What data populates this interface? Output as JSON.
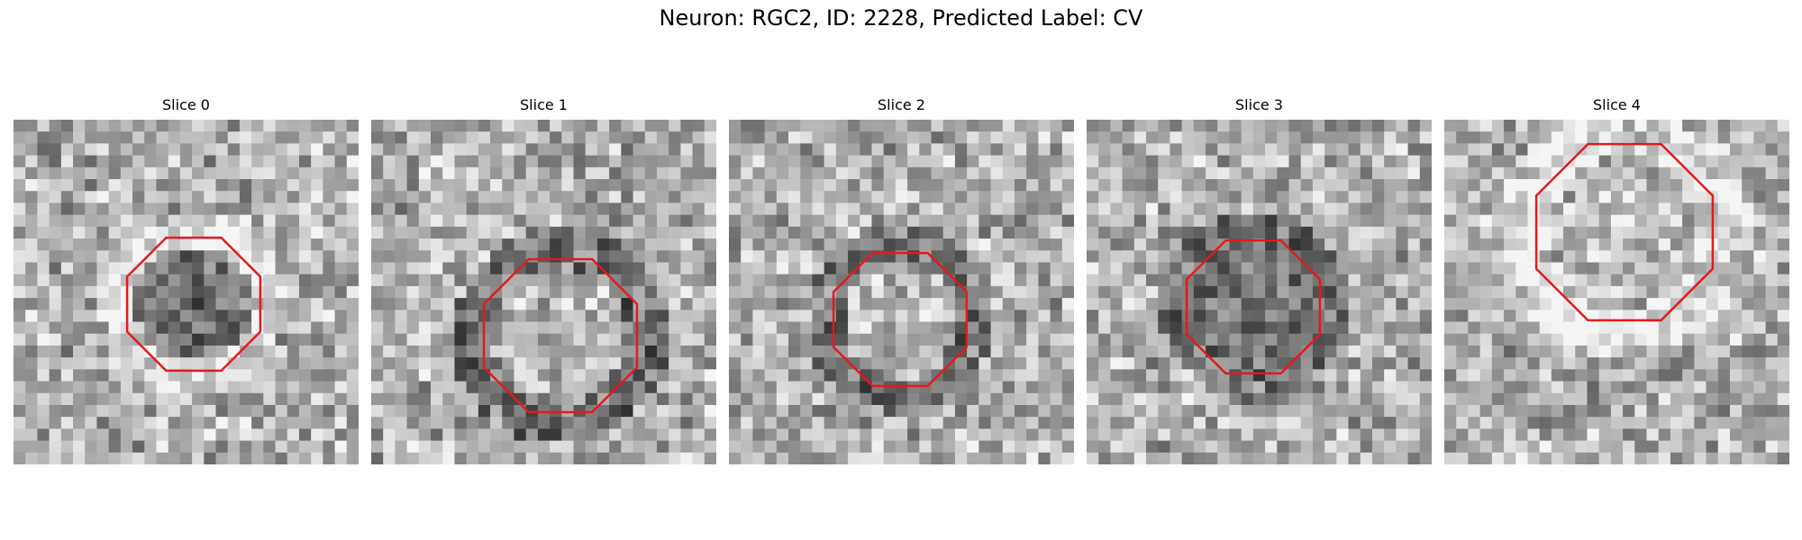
{
  "figure": {
    "title": "Neuron: RGC2, ID: 2228, Predicted Label: CV"
  },
  "colors": {
    "roi_outline": "#e31a1c",
    "background": "#ffffff"
  },
  "panels": [
    {
      "title": "Slice 0",
      "seed": 11,
      "dark_center": true,
      "ring_bright": true
    },
    {
      "title": "Slice 1",
      "seed": 23,
      "dark_center": false,
      "ring_bright": false
    },
    {
      "title": "Slice 2",
      "seed": 37,
      "dark_center": false,
      "ring_bright": false
    },
    {
      "title": "Slice 3",
      "seed": 53,
      "dark_center": true,
      "ring_bright": false
    },
    {
      "title": "Slice 4",
      "seed": 71,
      "dark_center": false,
      "ring_bright": true
    }
  ]
}
